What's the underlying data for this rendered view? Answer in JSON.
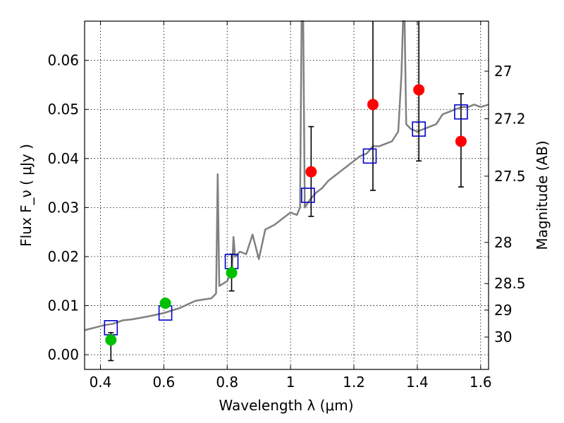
{
  "chart_data": {
    "type": "scatter",
    "xlabel": "Wavelength  λ (μm)",
    "ylabel": "Flux  F_ν  ( μJy )",
    "ylabel_right": "Magnitude (AB)",
    "xlim": [
      0.35,
      1.625
    ],
    "ylim": [
      -0.003,
      0.068
    ],
    "grid": true,
    "x_ticks": [
      0.4,
      0.6,
      0.8,
      1.0,
      1.2,
      1.4,
      1.6
    ],
    "x_tick_labels": [
      "0.4",
      "0.6",
      "0.8",
      "1",
      "1.2",
      "1.4",
      "1.6"
    ],
    "y_ticks": [
      0.0,
      0.01,
      0.02,
      0.03,
      0.04,
      0.05,
      0.06
    ],
    "y_tick_labels": [
      "0.00",
      "0.01",
      "0.02",
      "0.03",
      "0.04",
      "0.05",
      "0.06"
    ],
    "right_ticks": [
      {
        "label": "27",
        "flux": 0.0578
      },
      {
        "label": "27.2",
        "flux": 0.0481
      },
      {
        "label": "27.5",
        "flux": 0.0364
      },
      {
        "label": "28",
        "flux": 0.0229
      },
      {
        "label": "28.5",
        "flux": 0.0145
      },
      {
        "label": "29",
        "flux": 0.0091
      },
      {
        "label": "30",
        "flux": 0.0036
      }
    ],
    "series": [
      {
        "kind": "line",
        "color": "#808080",
        "points": [
          [
            0.35,
            0.005
          ],
          [
            0.38,
            0.0055
          ],
          [
            0.41,
            0.006
          ],
          [
            0.44,
            0.0063
          ],
          [
            0.47,
            0.007
          ],
          [
            0.5,
            0.0072
          ],
          [
            0.55,
            0.0078
          ],
          [
            0.6,
            0.0085
          ],
          [
            0.65,
            0.0095
          ],
          [
            0.7,
            0.011
          ],
          [
            0.75,
            0.0115
          ],
          [
            0.765,
            0.0125
          ],
          [
            0.77,
            0.0368
          ],
          [
            0.775,
            0.014
          ],
          [
            0.8,
            0.015
          ],
          [
            0.815,
            0.017
          ],
          [
            0.82,
            0.024
          ],
          [
            0.825,
            0.02
          ],
          [
            0.84,
            0.021
          ],
          [
            0.86,
            0.0205
          ],
          [
            0.88,
            0.0245
          ],
          [
            0.9,
            0.0195
          ],
          [
            0.92,
            0.0255
          ],
          [
            0.95,
            0.0265
          ],
          [
            0.98,
            0.028
          ],
          [
            1.0,
            0.029
          ],
          [
            1.02,
            0.0285
          ],
          [
            1.03,
            0.03
          ],
          [
            1.035,
            0.07
          ],
          [
            1.04,
            0.07
          ],
          [
            1.045,
            0.03
          ],
          [
            1.06,
            0.0315
          ],
          [
            1.08,
            0.033
          ],
          [
            1.1,
            0.034
          ],
          [
            1.12,
            0.0355
          ],
          [
            1.14,
            0.0365
          ],
          [
            1.16,
            0.0375
          ],
          [
            1.18,
            0.0385
          ],
          [
            1.2,
            0.0395
          ],
          [
            1.22,
            0.0405
          ],
          [
            1.24,
            0.041
          ],
          [
            1.26,
            0.0425
          ],
          [
            1.28,
            0.0425
          ],
          [
            1.3,
            0.043
          ],
          [
            1.32,
            0.0435
          ],
          [
            1.34,
            0.0455
          ],
          [
            1.35,
            0.057
          ],
          [
            1.355,
            0.07
          ],
          [
            1.36,
            0.07
          ],
          [
            1.365,
            0.047
          ],
          [
            1.38,
            0.046
          ],
          [
            1.4,
            0.0455
          ],
          [
            1.42,
            0.046
          ],
          [
            1.44,
            0.0465
          ],
          [
            1.46,
            0.047
          ],
          [
            1.48,
            0.049
          ],
          [
            1.5,
            0.0495
          ],
          [
            1.52,
            0.05
          ],
          [
            1.54,
            0.0505
          ],
          [
            1.56,
            0.0505
          ],
          [
            1.58,
            0.051
          ],
          [
            1.6,
            0.0505
          ],
          [
            1.625,
            0.051
          ]
        ]
      },
      {
        "kind": "square",
        "color": "#0000cc",
        "points": [
          [
            0.433,
            0.0055
          ],
          [
            0.605,
            0.0085
          ],
          [
            0.814,
            0.019
          ],
          [
            1.055,
            0.0325
          ],
          [
            1.25,
            0.0405
          ],
          [
            1.405,
            0.046
          ],
          [
            1.538,
            0.0495
          ]
        ]
      },
      {
        "kind": "circle",
        "color": "#00c000",
        "points": [
          [
            0.433,
            0.003
          ],
          [
            0.605,
            0.0105
          ],
          [
            0.814,
            0.0167
          ]
        ],
        "errors": [
          [
            -0.0012,
            0.0045
          ],
          null,
          [
            0.013,
            0.0205
          ]
        ]
      },
      {
        "kind": "circle",
        "color": "#ff0000",
        "points": [
          [
            1.065,
            0.0373
          ],
          [
            1.26,
            0.051
          ],
          [
            1.405,
            0.054
          ],
          [
            1.538,
            0.0435
          ]
        ],
        "errors": [
          [
            0.0282,
            0.0465
          ],
          [
            0.0335,
            0.07
          ],
          [
            0.0395,
            0.07
          ],
          [
            0.0342,
            0.0532
          ]
        ]
      }
    ]
  }
}
